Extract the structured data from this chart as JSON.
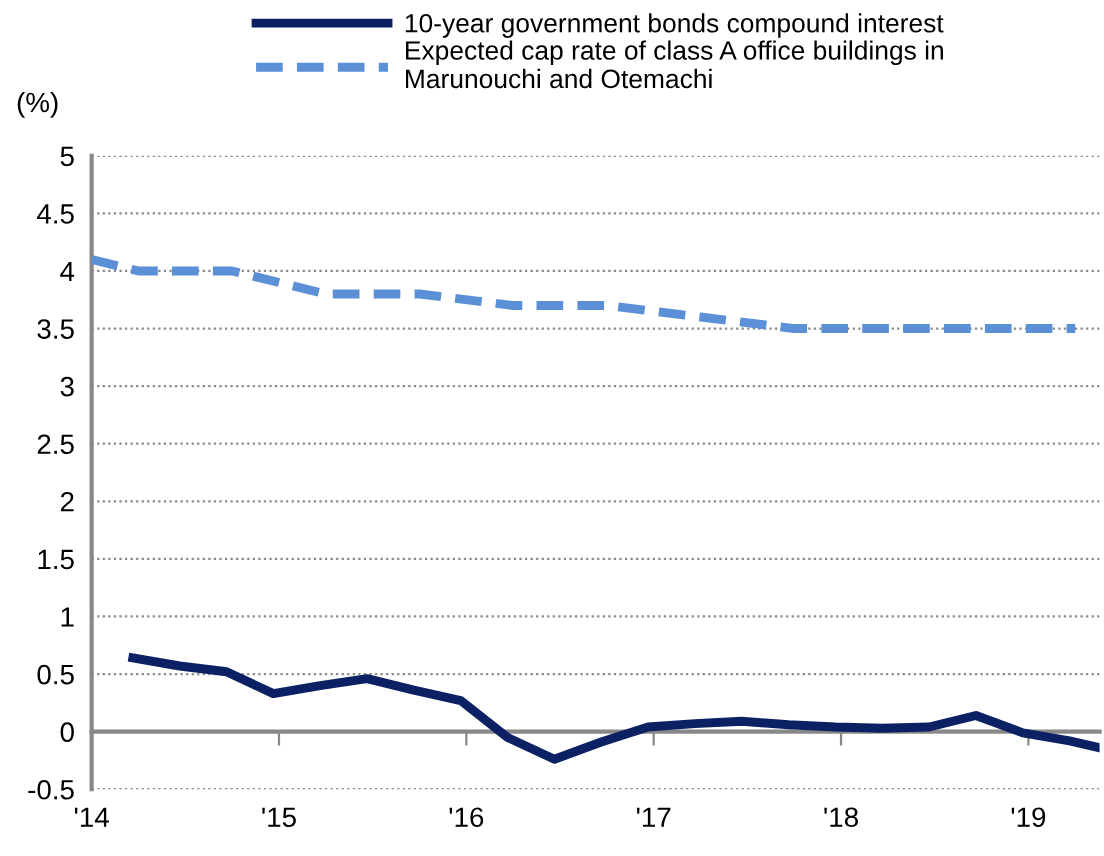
{
  "chart_data": {
    "type": "line",
    "ylabel": "(%)",
    "xlim": [
      2014,
      2019.38
    ],
    "ylim": [
      -0.5,
      5
    ],
    "xticks": [
      {
        "value": 2014,
        "label": "'14"
      },
      {
        "value": 2015,
        "label": "'15"
      },
      {
        "value": 2016,
        "label": "'16"
      },
      {
        "value": 2017,
        "label": "'17"
      },
      {
        "value": 2018,
        "label": "'18"
      },
      {
        "value": 2019,
        "label": "'19"
      }
    ],
    "yticks": [
      -0.5,
      0,
      0.5,
      1,
      1.5,
      2,
      2.5,
      3,
      3.5,
      4,
      4.5,
      5
    ],
    "grid": "y",
    "legend": "top",
    "series": [
      {
        "name": "10-year government bonds compound interest",
        "color": "#0c2163",
        "line_style": "solid",
        "x": [
          2014.22,
          2014.47,
          2014.72,
          2014.97,
          2015.22,
          2015.47,
          2015.72,
          2015.97,
          2016.22,
          2016.47,
          2016.72,
          2016.97,
          2017.22,
          2017.47,
          2017.72,
          2017.97,
          2018.22,
          2018.47,
          2018.72,
          2018.97,
          2019.22,
          2019.38
        ],
        "values": [
          0.64,
          0.57,
          0.52,
          0.33,
          0.4,
          0.46,
          0.36,
          0.27,
          -0.05,
          -0.24,
          -0.09,
          0.04,
          0.07,
          0.09,
          0.06,
          0.04,
          0.03,
          0.04,
          0.14,
          -0.01,
          -0.08,
          -0.14
        ]
      },
      {
        "name": "Expected cap rate of class A office buildings in\nMarunouchi and Otemachi",
        "color": "#5b8fd6",
        "line_style": "dashed",
        "x": [
          2014.0,
          2014.25,
          2014.75,
          2015.25,
          2015.75,
          2016.25,
          2016.75,
          2017.25,
          2017.75,
          2018.25,
          2018.75,
          2019.25
        ],
        "values": [
          4.1,
          4.0,
          4.0,
          3.8,
          3.8,
          3.7,
          3.7,
          3.6,
          3.5,
          3.5,
          3.5,
          3.5
        ]
      }
    ]
  }
}
